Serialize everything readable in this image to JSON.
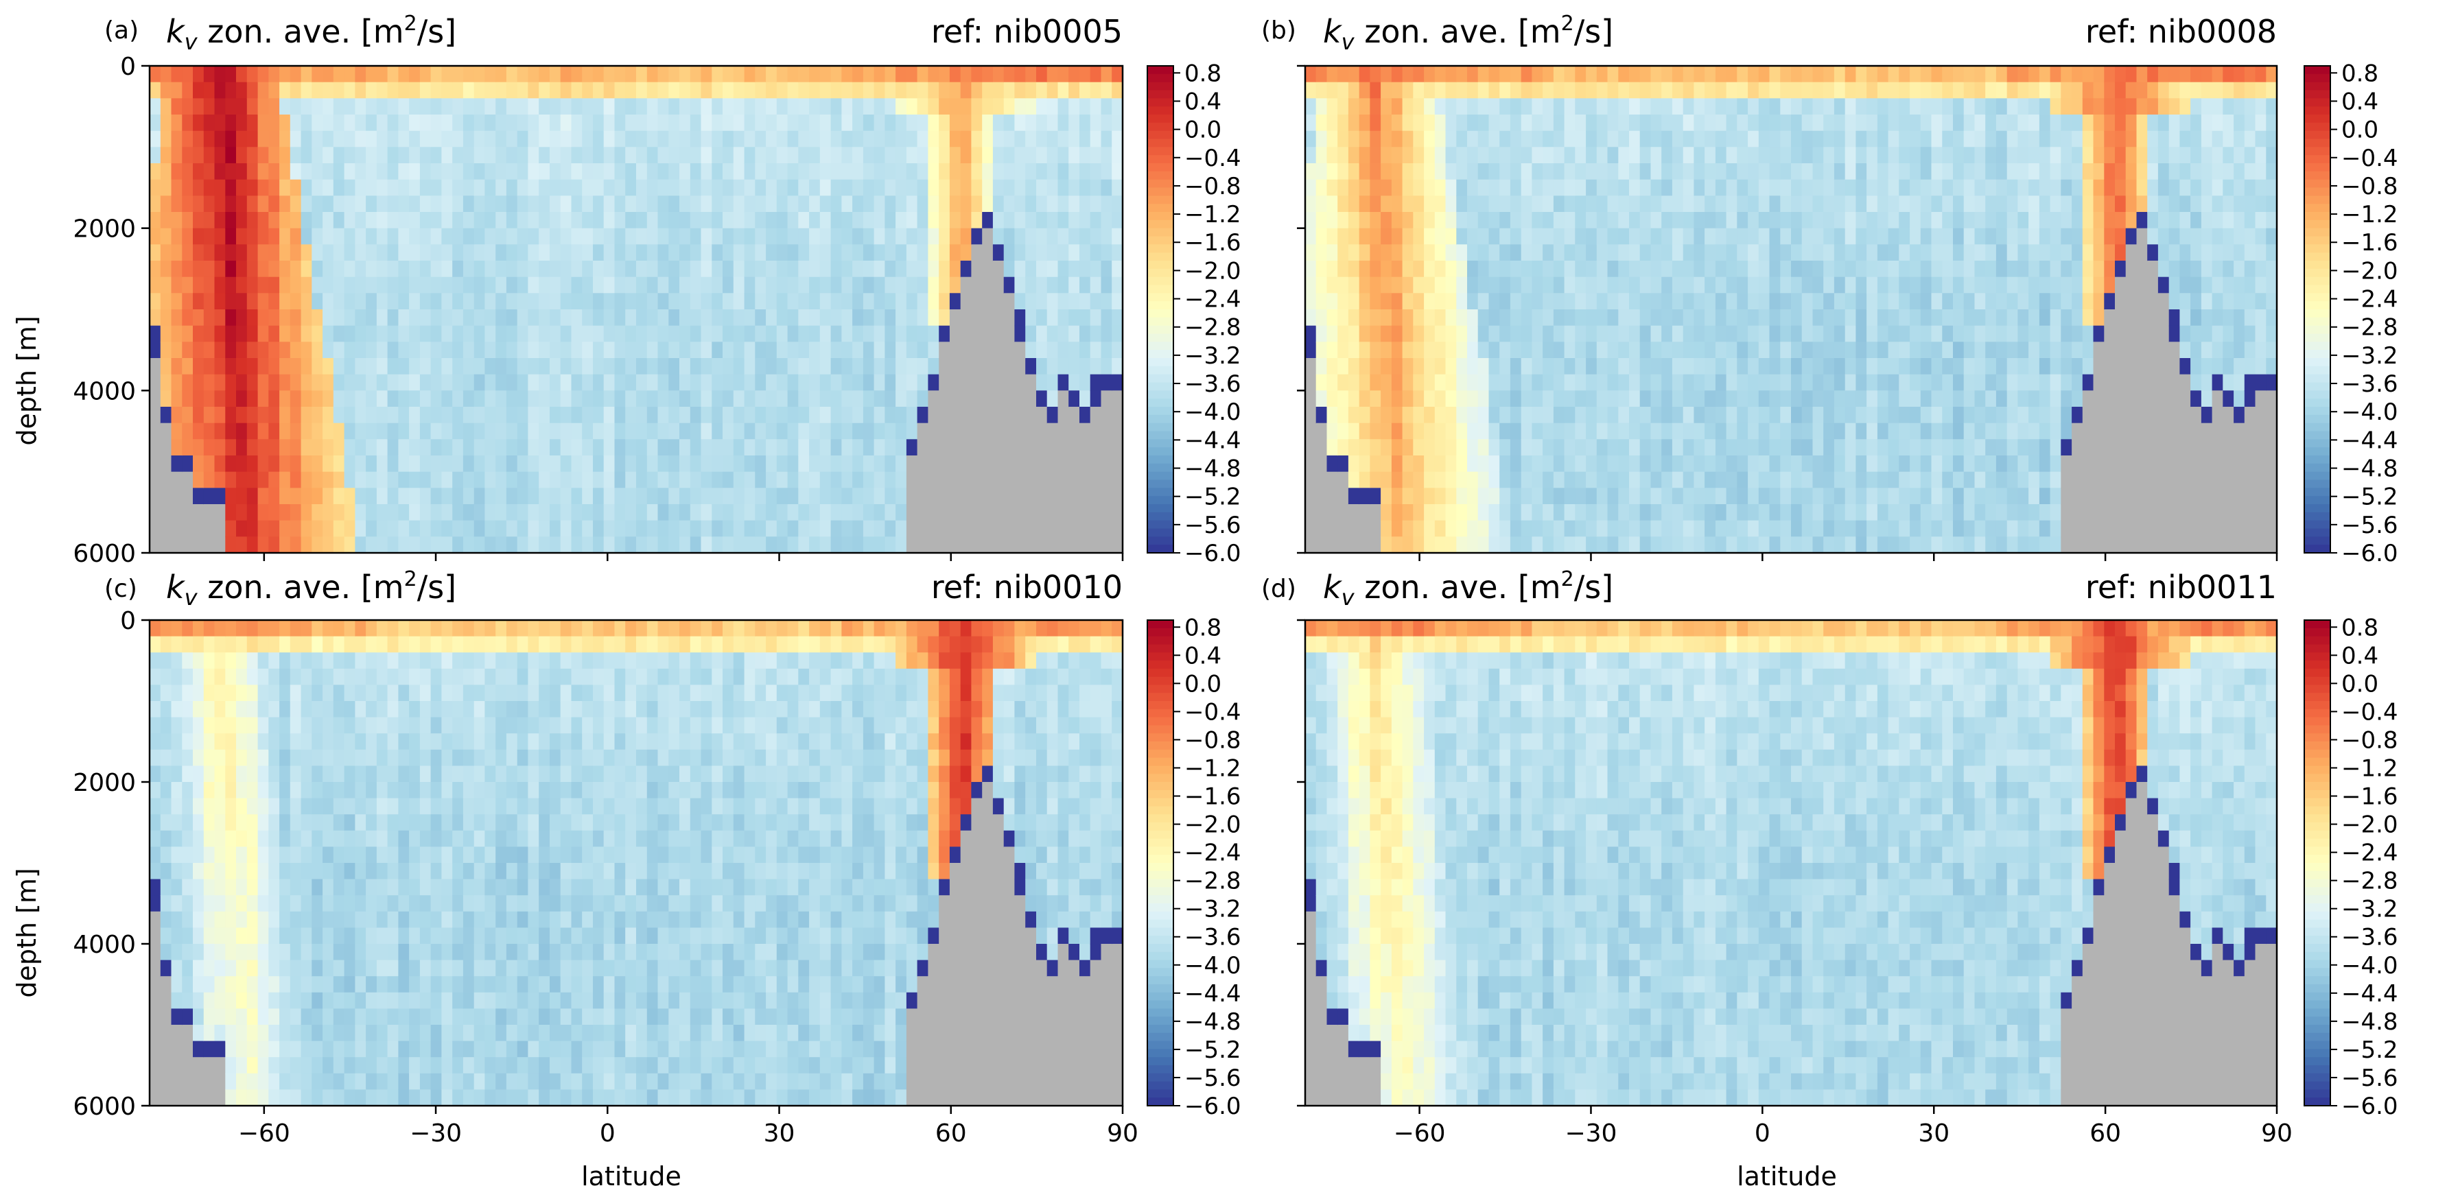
{
  "figure": {
    "panels": [
      {
        "letter": "(a)",
        "title_main": "k",
        "title_sub": "v",
        "title_rest": " zon. ave. [m",
        "title_sup": "2",
        "title_end": "/s]",
        "ref": "ref: nib0005"
      },
      {
        "letter": "(b)",
        "title_main": "k",
        "title_sub": "v",
        "title_rest": " zon. ave. [m",
        "title_sup": "2",
        "title_end": "/s]",
        "ref": "ref: nib0008"
      },
      {
        "letter": "(c)",
        "title_main": "k",
        "title_sub": "v",
        "title_rest": " zon. ave. [m",
        "title_sup": "2",
        "title_end": "/s]",
        "ref": "ref: nib0010"
      },
      {
        "letter": "(d)",
        "title_main": "k",
        "title_sub": "v",
        "title_rest": " zon. ave. [m",
        "title_sup": "2",
        "title_end": "/s]",
        "ref": "ref: nib0011"
      }
    ],
    "ylabel": "depth [m]",
    "xlabel": "latitude",
    "yticks": [
      "0",
      "2000",
      "4000",
      "6000"
    ],
    "xticks": [
      "−60",
      "−30",
      "0",
      "30",
      "60",
      "90"
    ],
    "colorbar_ticks": [
      "0.8",
      "0.4",
      "0.0",
      "−0.4",
      "−0.8",
      "−1.2",
      "−1.6",
      "−2.0",
      "−2.4",
      "−2.8",
      "−3.2",
      "−3.6",
      "−4.0",
      "−4.4",
      "−4.8",
      "−5.2",
      "−5.6",
      "−6.0"
    ]
  },
  "colors": {
    "land": "#b3b3b3",
    "deep_min": "#313695",
    "colormap": [
      "#313695",
      "#4575b4",
      "#74add1",
      "#abd9e9",
      "#e0f3f8",
      "#ffffbf",
      "#fee090",
      "#fdae61",
      "#f46d43",
      "#d73027",
      "#a50026"
    ]
  },
  "chart_data": [
    {
      "type": "heatmap",
      "panel": "(a)",
      "title": "k_v zon. ave. [m^2/s]",
      "ref": "nib0005",
      "xlabel": "",
      "ylabel": "depth [m]",
      "xlim": [
        -80,
        90
      ],
      "ylim": [
        6000,
        0
      ],
      "clim": [
        -6.0,
        0.9
      ],
      "colorbar_ticks": [
        0.8,
        0.4,
        0.0,
        -0.4,
        -0.8,
        -1.2,
        -1.6,
        -2.0,
        -2.4,
        -2.8,
        -3.2,
        -3.6,
        -4.0,
        -4.4,
        -4.8,
        -5.2,
        -5.6,
        -6.0
      ],
      "features": {
        "southern_max": 0.9,
        "northern_max": -1.0,
        "interior": -3.5,
        "surface_layer": -1.0
      }
    },
    {
      "type": "heatmap",
      "panel": "(b)",
      "title": "k_v zon. ave. [m^2/s]",
      "ref": "nib0008",
      "xlabel": "",
      "ylabel": "",
      "xlim": [
        -80,
        90
      ],
      "ylim": [
        6000,
        0
      ],
      "clim": [
        -6.0,
        0.9
      ],
      "colorbar_ticks": [
        0.8,
        0.4,
        0.0,
        -0.4,
        -0.8,
        -1.2,
        -1.6,
        -2.0,
        -2.4,
        -2.8,
        -3.2,
        -3.6,
        -4.0,
        -4.4,
        -4.8,
        -5.2,
        -5.6,
        -6.0
      ],
      "features": {
        "southern_max": -0.6,
        "northern_max": -0.2,
        "interior": -3.6,
        "surface_layer": -1.0
      }
    },
    {
      "type": "heatmap",
      "panel": "(c)",
      "title": "k_v zon. ave. [m^2/s]",
      "ref": "nib0010",
      "xlabel": "latitude",
      "ylabel": "depth [m]",
      "xlim": [
        -80,
        90
      ],
      "ylim": [
        6000,
        0
      ],
      "clim": [
        -6.0,
        0.9
      ],
      "colorbar_ticks": [
        0.8,
        0.4,
        0.0,
        -0.4,
        -0.8,
        -1.2,
        -1.6,
        -2.0,
        -2.4,
        -2.8,
        -3.2,
        -3.6,
        -4.0,
        -4.4,
        -4.8,
        -5.2,
        -5.6,
        -6.0
      ],
      "features": {
        "southern_max": -2.0,
        "northern_max": 0.2,
        "interior": -3.6,
        "surface_layer": -1.2
      }
    },
    {
      "type": "heatmap",
      "panel": "(d)",
      "title": "k_v zon. ave. [m^2/s]",
      "ref": "nib0011",
      "xlabel": "latitude",
      "ylabel": "",
      "xlim": [
        -80,
        90
      ],
      "ylim": [
        6000,
        0
      ],
      "clim": [
        -6.0,
        0.9
      ],
      "colorbar_ticks": [
        0.8,
        0.4,
        0.0,
        -0.4,
        -0.8,
        -1.2,
        -1.6,
        -2.0,
        -2.4,
        -2.8,
        -3.2,
        -3.6,
        -4.0,
        -4.4,
        -4.8,
        -5.2,
        -5.6,
        -6.0
      ],
      "features": {
        "southern_max": -1.8,
        "northern_max": 0.1,
        "interior": -3.6,
        "surface_layer": -1.2
      }
    }
  ]
}
